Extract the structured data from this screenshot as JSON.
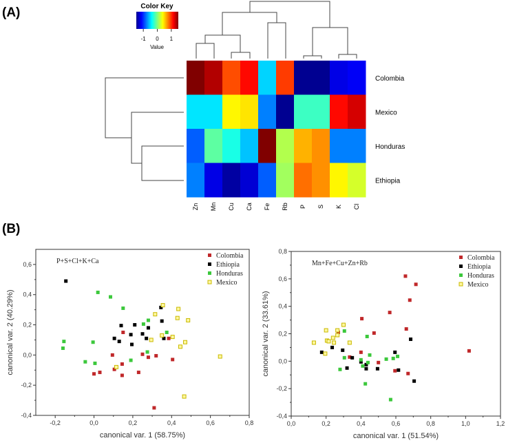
{
  "panel_labels": {
    "a": "(A)",
    "b": "(B)"
  },
  "chart_data": [
    {
      "type": "heatmap",
      "title": "Color Key",
      "colorbar": {
        "label": "Value",
        "range": [
          -1.5,
          1.5
        ],
        "ticks": [
          "-1",
          "0",
          "1"
        ],
        "tick_values": [
          -1,
          0,
          1
        ],
        "colormap": "jet"
      },
      "rows": [
        "Colombia",
        "Mexico",
        "Honduras",
        "Ethiopia"
      ],
      "columns": [
        "Zn",
        "Mn",
        "Cu",
        "Ca",
        "Fe",
        "Rb",
        "P",
        "S",
        "K",
        "Cl"
      ],
      "values": [
        [
          1.5,
          1.35,
          0.9,
          1.1,
          -0.5,
          0.95,
          -1.45,
          -1.45,
          -1.2,
          -1.15
        ],
        [
          -0.45,
          -0.45,
          0.4,
          0.45,
          -0.75,
          -1.45,
          -0.2,
          -0.2,
          1.1,
          1.25
        ],
        [
          -0.85,
          -0.1,
          -0.3,
          -0.55,
          1.5,
          0.15,
          0.6,
          0.7,
          -0.75,
          -0.75
        ],
        [
          -0.75,
          -1.2,
          -1.4,
          -1.25,
          -0.85,
          0.1,
          0.8,
          0.7,
          0.4,
          0.25
        ]
      ],
      "row_dendrogram": true,
      "column_dendrogram": true
    },
    {
      "type": "scatter",
      "annotation": "P+S+Cl+K+Ca",
      "xlabel": "canonical var. 1 (58.75%)",
      "ylabel": "canonical var. 2 (40.29%)",
      "xlim": [
        -0.3,
        0.8
      ],
      "ylim": [
        -0.4,
        0.7
      ],
      "xticks": [
        "-0,2",
        "0,0",
        "0,2",
        "0,4",
        "0,6",
        "0,8"
      ],
      "xtick_values": [
        -0.2,
        0,
        0.2,
        0.4,
        0.6,
        0.8
      ],
      "yticks": [
        "-0,4",
        "-0,2",
        "0,0",
        "0,2",
        "0,4",
        "0,6"
      ],
      "ytick_values": [
        -0.4,
        -0.2,
        0,
        0.2,
        0.4,
        0.6
      ],
      "legend_position": "top-right",
      "series": [
        {
          "name": "Colombia",
          "color": "#c0282a",
          "hollow": false,
          "points": [
            [
              0.15,
              0.15
            ],
            [
              0.095,
              0.0
            ],
            [
              0.25,
              0.005
            ],
            [
              0.28,
              -0.015
            ],
            [
              0.32,
              -0.005
            ],
            [
              0.385,
              0.11
            ],
            [
              0.405,
              -0.03
            ],
            [
              0.145,
              -0.06
            ],
            [
              0.105,
              -0.095
            ],
            [
              0.145,
              -0.135
            ],
            [
              0.23,
              -0.115
            ],
            [
              0.03,
              -0.115
            ],
            [
              0.0,
              -0.125
            ],
            [
              0.31,
              -0.35
            ]
          ]
        },
        {
          "name": "Ethiopia",
          "color": "#000000",
          "hollow": false,
          "points": [
            [
              -0.145,
              0.49
            ],
            [
              0.14,
              0.195
            ],
            [
              0.21,
              0.2
            ],
            [
              0.28,
              0.18
            ],
            [
              0.19,
              0.135
            ],
            [
              0.25,
              0.14
            ],
            [
              0.105,
              0.11
            ],
            [
              0.13,
              0.09
            ],
            [
              0.195,
              0.07
            ],
            [
              0.27,
              0.11
            ],
            [
              0.345,
              0.315
            ],
            [
              0.35,
              0.225
            ],
            [
              0.36,
              0.11
            ]
          ]
        },
        {
          "name": "Honduras",
          "color": "#3cc83c",
          "hollow": false,
          "points": [
            [
              0.02,
              0.415
            ],
            [
              0.085,
              0.385
            ],
            [
              0.15,
              0.31
            ],
            [
              0.28,
              0.23
            ],
            [
              0.255,
              0.205
            ],
            [
              0.375,
              0.15
            ],
            [
              -0.155,
              0.09
            ],
            [
              -0.16,
              0.045
            ],
            [
              -0.005,
              0.085
            ],
            [
              -0.045,
              -0.045
            ],
            [
              0.005,
              -0.055
            ],
            [
              0.19,
              -0.035
            ],
            [
              0.275,
              0.02
            ]
          ]
        },
        {
          "name": "Mexico",
          "color": "#e8e030",
          "hollow": true,
          "points": [
            [
              0.355,
              0.33
            ],
            [
              0.315,
              0.27
            ],
            [
              0.435,
              0.305
            ],
            [
              0.43,
              0.245
            ],
            [
              0.485,
              0.23
            ],
            [
              0.35,
              0.13
            ],
            [
              0.405,
              0.12
            ],
            [
              0.295,
              0.1
            ],
            [
              0.47,
              0.085
            ],
            [
              0.445,
              0.055
            ],
            [
              0.65,
              -0.01
            ],
            [
              0.115,
              -0.08
            ],
            [
              0.465,
              -0.275
            ]
          ]
        }
      ]
    },
    {
      "type": "scatter",
      "annotation": "Mn+Fe+Cu+Zn+Rb",
      "xlabel": "canonical var. 1 (51.54%)",
      "ylabel": "canonical var. 2 (33.61%)",
      "xlim": [
        0.0,
        1.2
      ],
      "ylim": [
        -0.4,
        0.8
      ],
      "xticks": [
        "0,0",
        "0,2",
        "0,4",
        "0,6",
        "0,8",
        "1,0",
        "1,2"
      ],
      "xtick_values": [
        0,
        0.2,
        0.4,
        0.6,
        0.8,
        1.0,
        1.2
      ],
      "yticks": [
        "-0,4",
        "-0,2",
        "0,0",
        "0,2",
        "0,4",
        "0,6",
        "0,8"
      ],
      "ytick_values": [
        -0.4,
        -0.2,
        0,
        0.2,
        0.4,
        0.6,
        0.8
      ],
      "legend_position": "top-right",
      "series": [
        {
          "name": "Colombia",
          "color": "#c0282a",
          "hollow": false,
          "points": [
            [
              0.655,
              0.62
            ],
            [
              0.715,
              0.56
            ],
            [
              0.68,
              0.445
            ],
            [
              0.565,
              0.355
            ],
            [
              0.405,
              0.31
            ],
            [
              0.66,
              0.235
            ],
            [
              0.475,
              0.205
            ],
            [
              0.27,
              0.21
            ],
            [
              0.4,
              0.065
            ],
            [
              0.335,
              0.03
            ],
            [
              0.5,
              -0.01
            ],
            [
              0.595,
              -0.07
            ],
            [
              0.67,
              -0.09
            ],
            [
              1.02,
              0.075
            ]
          ]
        },
        {
          "name": "Ethiopia",
          "color": "#000000",
          "hollow": false,
          "points": [
            [
              0.175,
              0.065
            ],
            [
              0.235,
              0.1
            ],
            [
              0.295,
              0.08
            ],
            [
              0.35,
              0.025
            ],
            [
              0.32,
              -0.05
            ],
            [
              0.4,
              -0.005
            ],
            [
              0.43,
              -0.025
            ],
            [
              0.43,
              -0.055
            ],
            [
              0.495,
              -0.055
            ],
            [
              0.595,
              0.065
            ],
            [
              0.615,
              -0.065
            ],
            [
              0.685,
              0.16
            ],
            [
              0.705,
              -0.145
            ]
          ]
        },
        {
          "name": "Honduras",
          "color": "#3cc83c",
          "hollow": false,
          "points": [
            [
              0.305,
              0.22
            ],
            [
              0.435,
              0.18
            ],
            [
              0.45,
              0.045
            ],
            [
              0.305,
              0.025
            ],
            [
              0.4,
              0.01
            ],
            [
              0.44,
              -0.01
            ],
            [
              0.41,
              -0.035
            ],
            [
              0.28,
              -0.06
            ],
            [
              0.545,
              0.015
            ],
            [
              0.585,
              0.02
            ],
            [
              0.61,
              0.035
            ],
            [
              0.425,
              -0.165
            ],
            [
              0.57,
              -0.28
            ]
          ]
        },
        {
          "name": "Mexico",
          "color": "#e8e030",
          "hollow": true,
          "points": [
            [
              0.3,
              0.265
            ],
            [
              0.2,
              0.225
            ],
            [
              0.265,
              0.225
            ],
            [
              0.24,
              0.17
            ],
            [
              0.205,
              0.15
            ],
            [
              0.215,
              0.145
            ],
            [
              0.245,
              0.135
            ],
            [
              0.265,
              0.19
            ],
            [
              0.335,
              0.135
            ],
            [
              0.13,
              0.135
            ],
            [
              0.195,
              0.055
            ]
          ]
        }
      ]
    }
  ]
}
